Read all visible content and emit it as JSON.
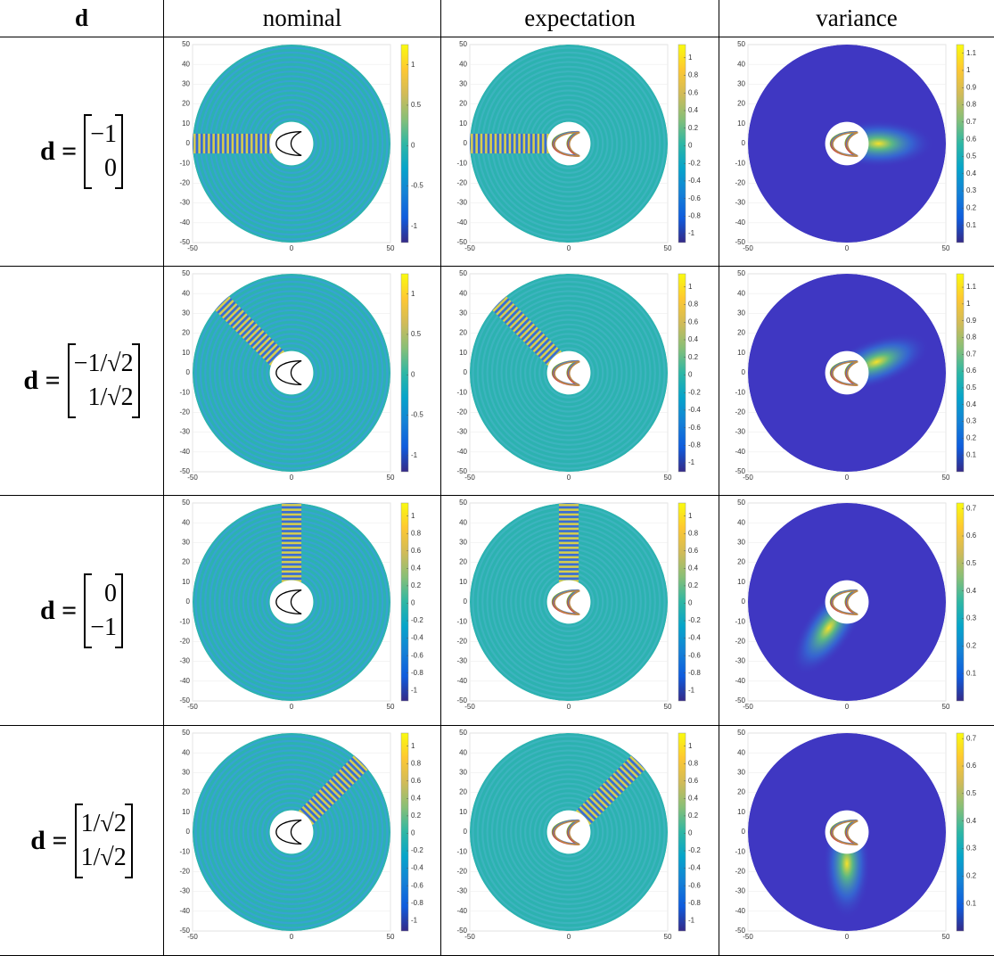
{
  "table": {
    "header": [
      "d",
      "nominal",
      "expectation",
      "variance"
    ],
    "axes": {
      "xlim": [
        -50,
        50
      ],
      "ylim": [
        -50,
        50
      ],
      "xticks": [
        -50,
        0,
        50
      ],
      "yticks": [
        -50,
        -40,
        -30,
        -20,
        -10,
        0,
        10,
        20,
        30,
        40,
        50
      ]
    },
    "rows": [
      {
        "label": {
          "lhs": "d =",
          "entries": [
            "−1",
            "0"
          ]
        },
        "panels": [
          {
            "clim": [
              -1.2,
              1.25
            ],
            "cticks": [
              -1,
              -0.5,
              0,
              0.5,
              1
            ]
          },
          {
            "clim": [
              -1.1,
              1.15
            ],
            "cticks": [
              -1,
              -0.8,
              -0.6,
              -0.4,
              -0.2,
              0,
              0.2,
              0.4,
              0.6,
              0.8,
              1
            ]
          },
          {
            "clim": [
              0,
              1.15
            ],
            "cticks": [
              0.1,
              0.2,
              0.3,
              0.4,
              0.5,
              0.6,
              0.7,
              0.8,
              0.9,
              1,
              1.1
            ]
          }
        ]
      },
      {
        "label": {
          "lhs": "d =",
          "entries": [
            "−1/√2",
            "1/√2"
          ]
        },
        "panels": [
          {
            "clim": [
              -1.2,
              1.25
            ],
            "cticks": [
              -1,
              -0.5,
              0,
              0.5,
              1
            ]
          },
          {
            "clim": [
              -1.1,
              1.15
            ],
            "cticks": [
              -1,
              -0.8,
              -0.6,
              -0.4,
              -0.2,
              0,
              0.2,
              0.4,
              0.6,
              0.8,
              1
            ]
          },
          {
            "clim": [
              0,
              1.18
            ],
            "cticks": [
              0.1,
              0.2,
              0.3,
              0.4,
              0.5,
              0.6,
              0.7,
              0.8,
              0.9,
              1,
              1.1
            ]
          }
        ]
      },
      {
        "label": {
          "lhs": "d =",
          "entries": [
            "0",
            "−1"
          ]
        },
        "panels": [
          {
            "clim": [
              -1.12,
              1.15
            ],
            "cticks": [
              -1,
              -0.8,
              -0.6,
              -0.4,
              -0.2,
              0,
              0.2,
              0.4,
              0.6,
              0.8,
              1
            ]
          },
          {
            "clim": [
              -1.12,
              1.15
            ],
            "cticks": [
              -1,
              -0.8,
              -0.6,
              -0.4,
              -0.2,
              0,
              0.2,
              0.4,
              0.6,
              0.8,
              1
            ]
          },
          {
            "clim": [
              0,
              0.72
            ],
            "cticks": [
              0.1,
              0.2,
              0.3,
              0.4,
              0.5,
              0.6,
              0.7
            ]
          }
        ]
      },
      {
        "label": {
          "lhs": "d =",
          "entries": [
            "1/√2",
            "1/√2"
          ]
        },
        "panels": [
          {
            "clim": [
              -1.12,
              1.15
            ],
            "cticks": [
              -1,
              -0.8,
              -0.6,
              -0.4,
              -0.2,
              0,
              0.2,
              0.4,
              0.6,
              0.8,
              1
            ]
          },
          {
            "clim": [
              -1.12,
              1.15
            ],
            "cticks": [
              -1,
              -0.8,
              -0.6,
              -0.4,
              -0.2,
              0,
              0.2,
              0.4,
              0.6,
              0.8,
              1
            ]
          },
          {
            "clim": [
              0,
              0.72
            ],
            "cticks": [
              0.1,
              0.2,
              0.3,
              0.4,
              0.5,
              0.6,
              0.7
            ]
          }
        ]
      }
    ]
  }
}
